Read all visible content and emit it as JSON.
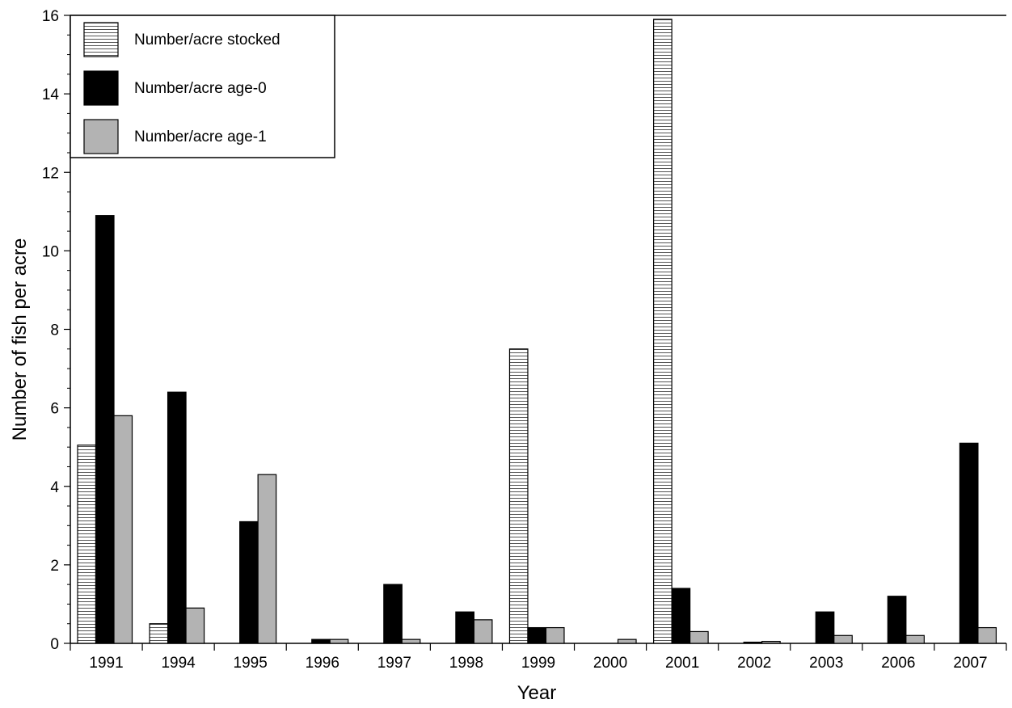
{
  "chart_data": {
    "type": "bar",
    "title": "",
    "xlabel": "Year",
    "ylabel": "Number of fish per acre",
    "ylim": [
      0,
      16
    ],
    "y_ticks": [
      "0",
      "2",
      "4",
      "6",
      "8",
      "10",
      "12",
      "14",
      "16"
    ],
    "grid": false,
    "legend_position": "top-left",
    "categories": [
      "1991",
      "1994",
      "1995",
      "1996",
      "1997",
      "1998",
      "1999",
      "2000",
      "2001",
      "2002",
      "2003",
      "2006",
      "2007"
    ],
    "series": [
      {
        "name": "Number/acre stocked",
        "style": "hatched",
        "color": "#ffffff",
        "values": [
          5.05,
          0.5,
          0,
          0,
          0,
          0,
          7.5,
          0,
          15.9,
          0,
          0,
          0,
          0
        ]
      },
      {
        "name": "Number/acre age-0",
        "style": "solid",
        "color": "#000000",
        "values": [
          10.9,
          6.4,
          3.1,
          0.1,
          1.5,
          0.8,
          0.4,
          0,
          1.4,
          0.03,
          0.8,
          1.2,
          5.1
        ]
      },
      {
        "name": "Number/acre age-1",
        "style": "solid",
        "color": "#b3b3b3",
        "values": [
          5.8,
          0.9,
          4.3,
          0.1,
          0.1,
          0.6,
          0.4,
          0.1,
          0.3,
          0.05,
          0.2,
          0.2,
          0.4
        ]
      }
    ]
  }
}
